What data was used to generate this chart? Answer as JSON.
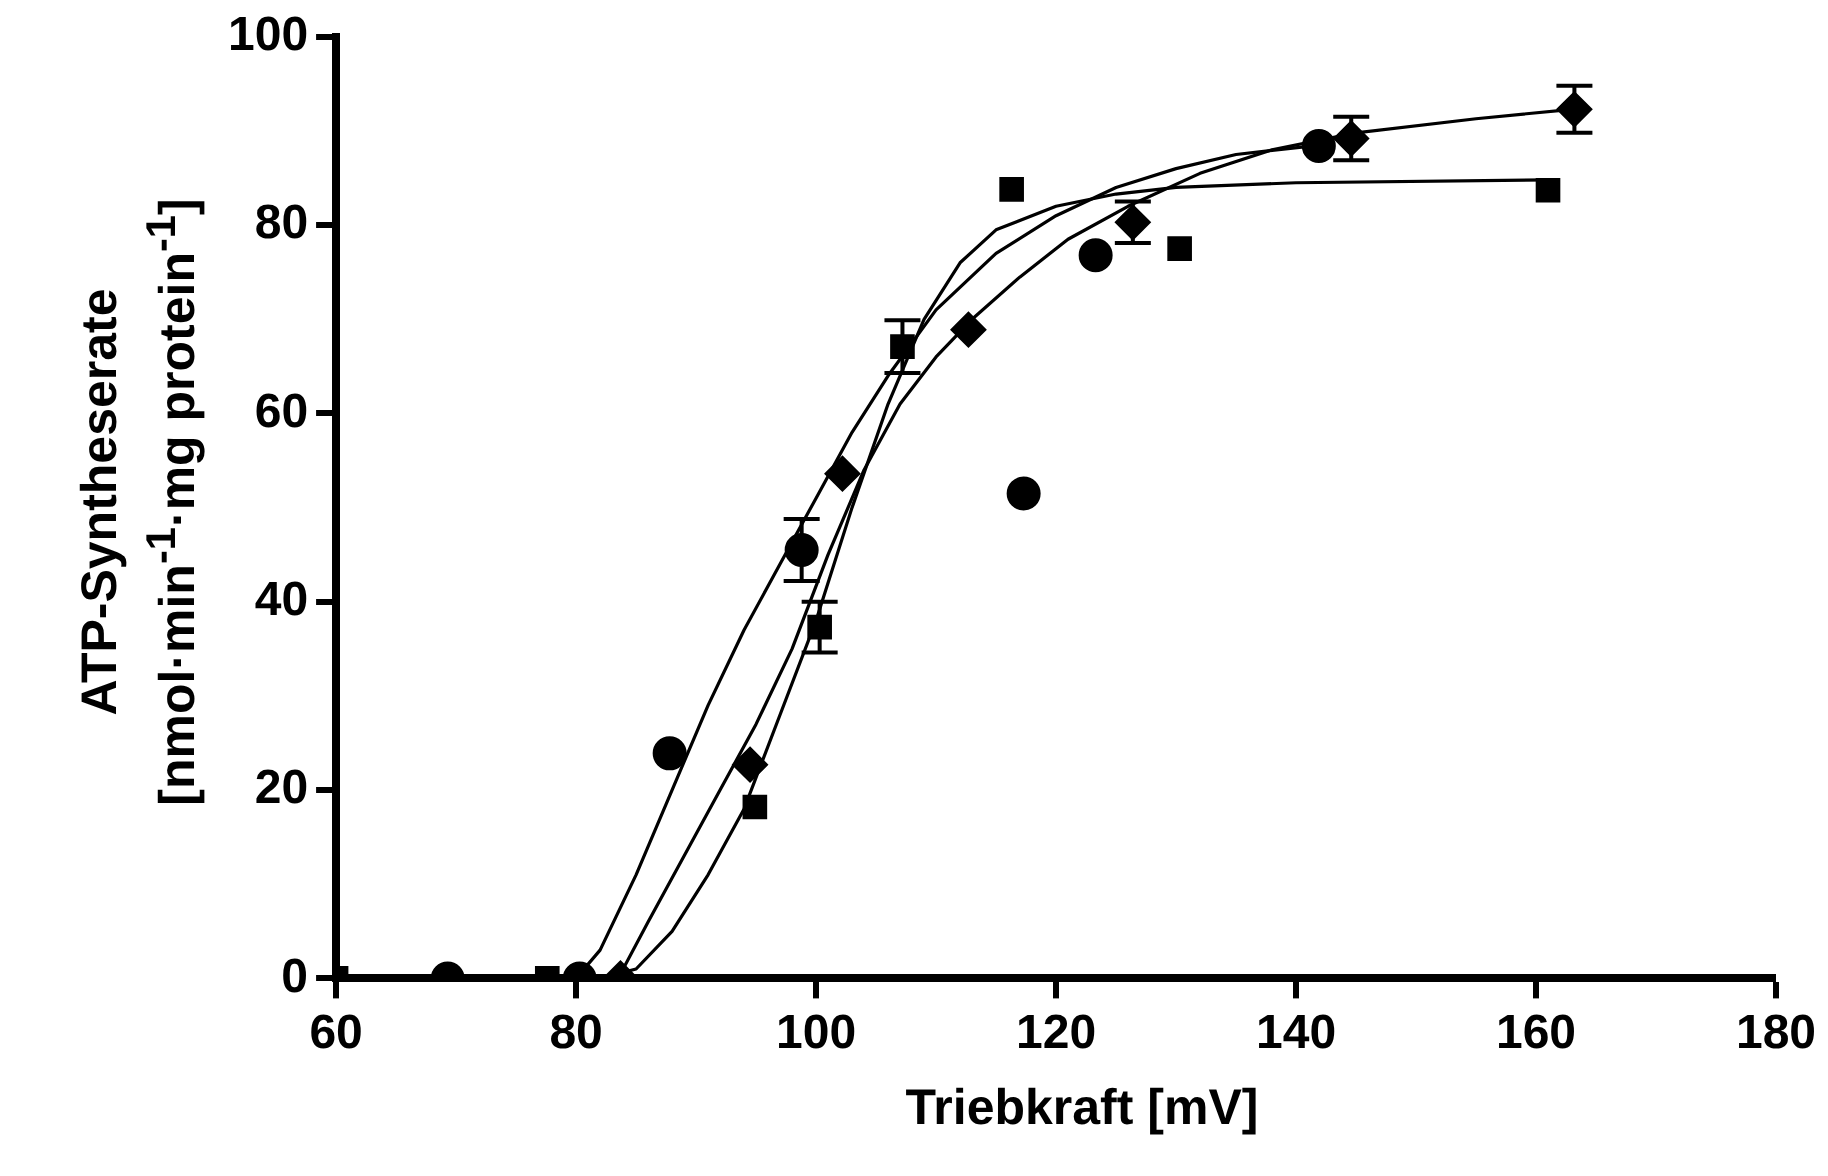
{
  "chart_data": {
    "type": "scatter",
    "xlabel": "Triebkraft [mV]",
    "ylabel": "ATP-Syntheserate\n[nmol·min$^{-1}$·mg protein$^{-1}$]",
    "xlim": [
      60,
      180
    ],
    "xticks": [
      60,
      80,
      100,
      120,
      140,
      160,
      180
    ],
    "ylim": [
      0,
      100
    ],
    "yticks": [
      0,
      20,
      40,
      60,
      80,
      100
    ],
    "series": [
      {
        "type": "scatter",
        "marker": "circle",
        "color": "#000000",
        "x": [
          69.3,
          80.3,
          87.8,
          98.8,
          117.3,
          123.3,
          141.9
        ],
        "values": [
          0,
          0,
          23.9,
          45.5,
          51.5,
          76.8,
          88.4
        ],
        "errors": [
          null,
          null,
          null,
          3.3,
          null,
          null,
          null
        ]
      },
      {
        "type": "scatter",
        "marker": "square",
        "color": "#000000",
        "x": [
          60,
          77.6,
          94.9,
          100.3,
          107.2,
          116.3,
          130.3,
          161
        ],
        "values": [
          0,
          0,
          18.2,
          37.3,
          67.1,
          83.8,
          77.5,
          83.7
        ],
        "errors": [
          null,
          null,
          null,
          2.7,
          2.8,
          null,
          null,
          null
        ]
      },
      {
        "type": "scatter",
        "marker": "diamond",
        "color": "#000000",
        "x": [
          83.7,
          94.5,
          102.2,
          112.7,
          126.4,
          144.6,
          163.2
        ],
        "values": [
          0,
          22.7,
          53.6,
          68.9,
          80.3,
          89.2,
          92.3
        ],
        "errors": [
          null,
          null,
          null,
          null,
          2.2,
          2.3,
          2.5
        ]
      },
      {
        "type": "line",
        "marker": "none",
        "color": "#000000",
        "x": [
          80,
          82,
          85,
          88,
          91,
          94,
          97,
          100,
          103,
          106,
          110,
          115,
          120,
          125,
          130,
          135,
          142
        ],
        "values": [
          0,
          3,
          11,
          20,
          29,
          37,
          44,
          51,
          58,
          64,
          71,
          77,
          81,
          84,
          86,
          87.5,
          88.5
        ]
      },
      {
        "type": "line",
        "marker": "none",
        "color": "#000000",
        "x": [
          82,
          85,
          88,
          91,
          94,
          97,
          100,
          103,
          106,
          109,
          112,
          115,
          120,
          125,
          130,
          140,
          161
        ],
        "values": [
          0,
          1,
          5,
          11,
          18,
          28,
          38,
          50,
          61,
          70,
          76,
          79.5,
          82,
          83.3,
          84,
          84.5,
          84.8
        ]
      },
      {
        "type": "line",
        "marker": "none",
        "color": "#000000",
        "x": [
          83.5,
          86,
          89,
          92,
          95,
          98,
          101,
          104,
          107,
          110,
          113,
          117,
          121,
          126,
          132,
          138,
          145,
          155,
          163
        ],
        "values": [
          0,
          6,
          13,
          20,
          27,
          35,
          45,
          54,
          61,
          66,
          70,
          74.5,
          78.5,
          82,
          85.5,
          88,
          89.8,
          91.3,
          92.3
        ]
      }
    ]
  }
}
